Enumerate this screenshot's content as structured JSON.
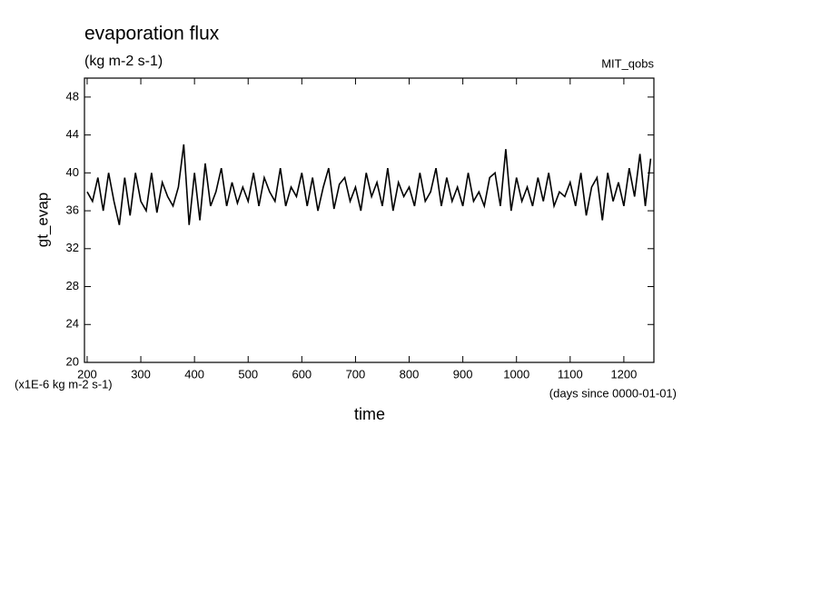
{
  "chart_data": {
    "type": "line",
    "title": "evaporation flux",
    "subtitle": "(kg m-2 s-1)",
    "dataset": "MIT_qobs",
    "y_label": "gt_evap",
    "x_label": "time",
    "y_units": "(x1E-6 kg m-2 s-1)",
    "x_units": "(days since 0000-01-01)",
    "color": "#000000",
    "x": [
      200,
      210,
      220,
      230,
      240,
      250,
      260,
      270,
      280,
      290,
      300,
      310,
      320,
      330,
      340,
      350,
      360,
      370,
      380,
      390,
      400,
      410,
      420,
      430,
      440,
      450,
      460,
      470,
      480,
      490,
      500,
      510,
      520,
      530,
      540,
      550,
      560,
      570,
      580,
      590,
      600,
      610,
      620,
      630,
      640,
      650,
      660,
      670,
      680,
      690,
      700,
      710,
      720,
      730,
      740,
      750,
      760,
      770,
      780,
      790,
      800,
      810,
      820,
      830,
      840,
      850,
      860,
      870,
      880,
      890,
      900,
      910,
      920,
      930,
      940,
      950,
      960,
      970,
      980,
      990,
      1000,
      1010,
      1020,
      1030,
      1040,
      1050,
      1060,
      1070,
      1080,
      1090,
      1100,
      1110,
      1120,
      1130,
      1140,
      1150,
      1160,
      1170,
      1180,
      1190,
      1200,
      1210,
      1220,
      1230,
      1240,
      1250
    ],
    "values": [
      38,
      37,
      39.5,
      36,
      40,
      37,
      34.5,
      39.5,
      35.5,
      40,
      37,
      36,
      40,
      35.8,
      39,
      37.5,
      36.5,
      38.5,
      43,
      34.5,
      40,
      35,
      41,
      36.5,
      38,
      40.5,
      36.5,
      39,
      36.8,
      38.5,
      37,
      40,
      36.5,
      39.5,
      38,
      37,
      40.5,
      36.5,
      38.5,
      37.5,
      40,
      36.5,
      39.5,
      36,
      38.5,
      40.5,
      36.2,
      38.8,
      39.5,
      37,
      38.5,
      36,
      40,
      37.5,
      39,
      36.5,
      40.5,
      36,
      39,
      37.5,
      38.5,
      36.5,
      40,
      37,
      38,
      40.5,
      36.5,
      39.5,
      37,
      38.5,
      36.5,
      40,
      37,
      38,
      36.5,
      39.5,
      40,
      36.5,
      42.5,
      36,
      39.5,
      37,
      38.5,
      36.5,
      39.5,
      37,
      40,
      36.5,
      38,
      37.5,
      39,
      36.5,
      40,
      35.5,
      38.5,
      39.5,
      35,
      40,
      37,
      39,
      36.5,
      40.5,
      37.5,
      42,
      36.5,
      41.5
    ],
    "xlim": [
      195,
      1256
    ],
    "ylim": [
      20,
      50
    ],
    "xticks": [
      200,
      300,
      400,
      500,
      600,
      700,
      800,
      900,
      1000,
      1100,
      1200
    ],
    "yticks": [
      20,
      24,
      28,
      32,
      36,
      40,
      44,
      48
    ]
  }
}
